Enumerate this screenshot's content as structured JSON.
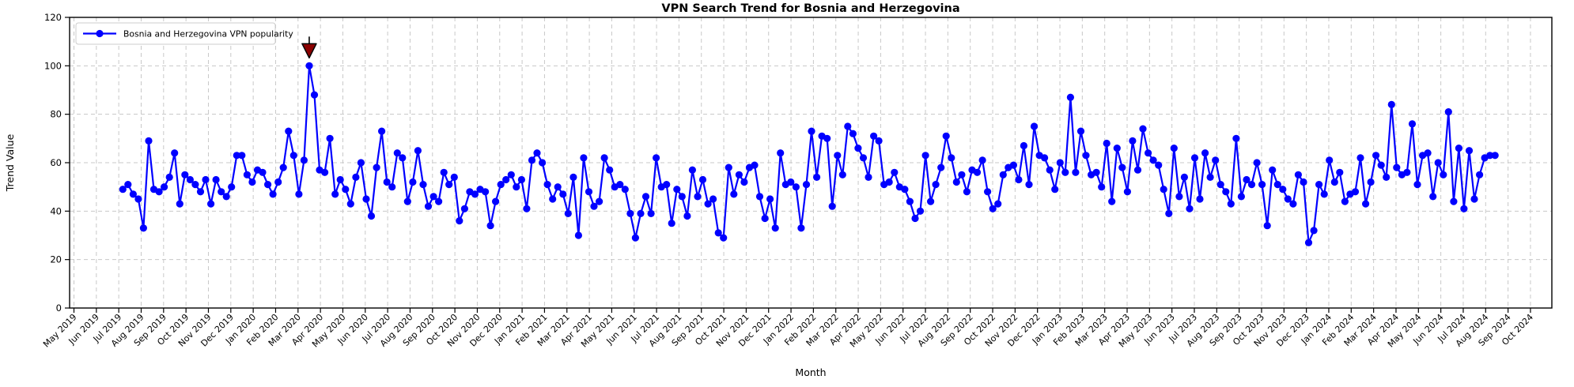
{
  "title": "VPN Search Trend for Bosnia and Herzegovina",
  "xlabel": "Month",
  "ylabel": "Trend Value",
  "legend": {
    "label": "Bosnia and Herzegovina VPN popularity"
  },
  "colors": {
    "line": "#0000ff",
    "marker": "#0000ff",
    "annotation": "#8b0000",
    "grid": "#c8c8c8",
    "axis": "#000000",
    "background": "#ffffff",
    "legend_border": "#cccccc"
  },
  "chart_data": {
    "type": "line",
    "title": "VPN Search Trend for Bosnia and Herzegovina",
    "xlabel": "Month",
    "ylabel": "Trend Value",
    "ylim": [
      0,
      120
    ],
    "y_ticks": [
      0,
      20,
      40,
      60,
      80,
      100,
      120
    ],
    "grid": "dashed",
    "legend_position": "upper-left",
    "x_tick_labels": [
      "May 2019",
      "Jun 2019",
      "Jul 2019",
      "Aug 2019",
      "Sep 2019",
      "Oct 2019",
      "Nov 2019",
      "Dec 2019",
      "Jan 2020",
      "Feb 2020",
      "Mar 2020",
      "Apr 2020",
      "May 2020",
      "Jun 2020",
      "Jul 2020",
      "Aug 2020",
      "Sep 2020",
      "Oct 2020",
      "Nov 2020",
      "Dec 2020",
      "Jan 2021",
      "Feb 2021",
      "Mar 2021",
      "Apr 2021",
      "May 2021",
      "Jun 2021",
      "Jul 2021",
      "Aug 2021",
      "Sep 2021",
      "Oct 2021",
      "Nov 2021",
      "Dec 2021",
      "Jan 2022",
      "Feb 2022",
      "Mar 2022",
      "Apr 2022",
      "May 2022",
      "Jun 2022",
      "Jul 2022",
      "Aug 2022",
      "Sep 2022",
      "Oct 2022",
      "Nov 2022",
      "Dec 2022",
      "Jan 2023",
      "Feb 2023",
      "Mar 2023",
      "Apr 2023",
      "May 2023",
      "Jun 2023",
      "Jul 2023",
      "Aug 2023",
      "Sep 2023",
      "Oct 2023",
      "Nov 2023",
      "Dec 2023",
      "Jan 2024",
      "Feb 2024",
      "Mar 2024",
      "Apr 2024",
      "May 2024",
      "Jun 2024",
      "Jul 2024",
      "Aug 2024",
      "Sep 2024",
      "Oct 2024"
    ],
    "series": [
      {
        "name": "Bosnia and Herzegovina VPN popularity",
        "cadence": "weekly",
        "start_month_offset": 2.18,
        "week_step_months": 0.2311,
        "values": [
          49,
          51,
          47,
          45,
          33,
          69,
          49,
          48,
          50,
          54,
          64,
          43,
          55,
          53,
          51,
          48,
          53,
          43,
          53,
          48,
          46,
          50,
          63,
          63,
          55,
          52,
          57,
          56,
          51,
          47,
          52,
          58,
          73,
          63,
          47,
          61,
          100,
          88,
          57,
          56,
          70,
          47,
          53,
          49,
          43,
          54,
          60,
          45,
          38,
          58,
          73,
          52,
          50,
          64,
          62,
          44,
          52,
          65,
          51,
          42,
          46,
          44,
          56,
          51,
          54,
          36,
          41,
          48,
          47,
          49,
          48,
          34,
          44,
          51,
          53,
          55,
          50,
          53,
          41,
          61,
          64,
          60,
          51,
          45,
          50,
          47,
          39,
          54,
          30,
          62,
          48,
          42,
          44,
          62,
          57,
          50,
          51,
          49,
          39,
          29,
          39,
          46,
          39,
          62,
          50,
          51,
          35,
          49,
          46,
          38,
          57,
          46,
          53,
          43,
          45,
          31,
          29,
          58,
          47,
          55,
          52,
          58,
          59,
          46,
          37,
          45,
          33,
          64,
          51,
          52,
          50,
          33,
          51,
          73,
          54,
          71,
          70,
          42,
          63,
          55,
          75,
          72,
          66,
          62,
          54,
          71,
          69,
          51,
          52,
          56,
          50,
          49,
          44,
          37,
          40,
          63,
          44,
          51,
          58,
          71,
          62,
          52,
          55,
          48,
          57,
          56,
          61,
          48,
          41,
          43,
          55,
          58,
          59,
          53,
          67,
          51,
          75,
          63,
          62,
          57,
          49,
          60,
          56,
          87,
          56,
          73,
          63,
          55,
          56,
          50,
          68,
          44,
          66,
          58,
          48,
          69,
          57,
          74,
          64,
          61,
          59,
          49,
          39,
          66,
          46,
          54,
          41,
          62,
          45,
          64,
          54,
          61,
          51,
          48,
          43,
          70,
          46,
          53,
          51,
          60,
          51,
          34,
          57,
          51,
          49,
          45,
          43,
          55,
          52,
          27,
          32,
          51,
          47,
          61,
          52,
          56,
          44,
          47,
          48,
          62,
          43,
          52,
          63,
          59,
          54,
          84,
          58,
          55,
          56,
          76,
          51,
          63,
          64,
          46,
          60,
          55,
          81,
          44,
          66,
          41,
          65,
          45,
          55,
          62,
          63,
          63
        ]
      }
    ],
    "annotation": {
      "shape": "triangle-down",
      "color": "#8b0000",
      "at_max": true,
      "max_value": 100
    }
  }
}
